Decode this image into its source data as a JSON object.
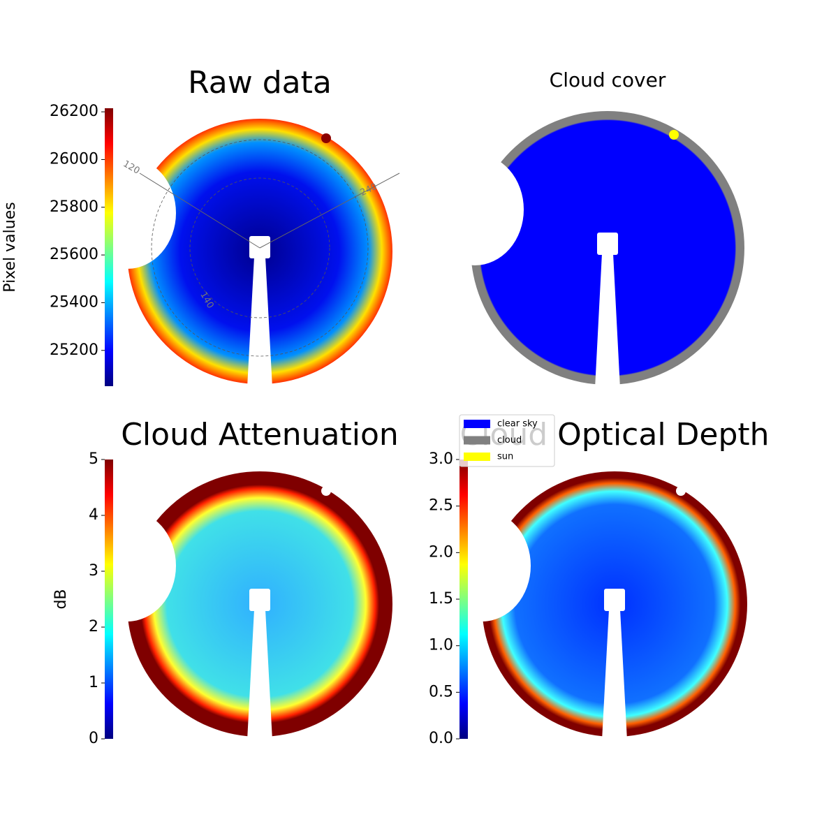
{
  "chart_data": [
    {
      "type": "image",
      "title": "Raw data",
      "colorbar": {
        "label": "Pixel values",
        "lim": [
          25050,
          26215
        ],
        "ticks": [
          25200,
          25400,
          25600,
          25800,
          26000,
          26200
        ]
      },
      "polar_labels": [
        "120",
        "240",
        "140"
      ]
    },
    {
      "type": "image",
      "title": "Cloud cover",
      "legend": [
        {
          "name": "clear sky",
          "color": "#0000ff"
        },
        {
          "name": "cloud",
          "color": "#808080"
        },
        {
          "name": "sun",
          "color": "#ffff00"
        }
      ]
    },
    {
      "type": "image",
      "title": "Cloud Attenuation",
      "colorbar": {
        "label": "dB",
        "lim": [
          0,
          5
        ],
        "ticks": [
          0,
          1,
          2,
          3,
          4,
          5
        ]
      }
    },
    {
      "type": "image",
      "title": "Cloud Optical Depth",
      "colorbar": {
        "lim": [
          0,
          3
        ],
        "ticks": [
          {
            "value": 0,
            "label": "0.0"
          },
          {
            "value": 0.5,
            "label": "0.5"
          },
          {
            "value": 1,
            "label": "1.0"
          },
          {
            "value": 1.5,
            "label": "1.5"
          },
          {
            "value": 2,
            "label": "2.0"
          },
          {
            "value": 2.5,
            "label": "2.5"
          },
          {
            "value": 3,
            "label": "3.0"
          }
        ]
      }
    }
  ]
}
